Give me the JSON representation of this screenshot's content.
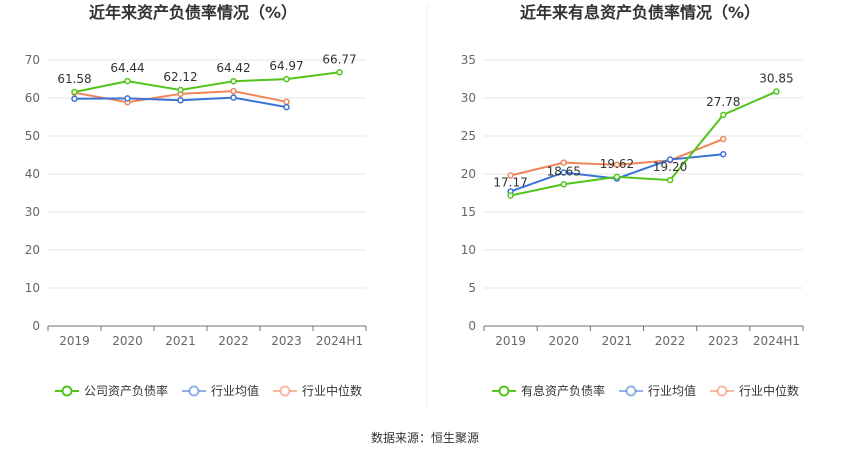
{
  "chart_data": [
    {
      "type": "line",
      "title": "近年来资产负债率情况（%）",
      "categories": [
        "2019",
        "2020",
        "2021",
        "2022",
        "2023",
        "2024H1"
      ],
      "ylim": [
        0,
        70
      ],
      "yticks": [
        0,
        10,
        20,
        30,
        40,
        50,
        60,
        70
      ],
      "grid": true,
      "legend_position": "bottom",
      "series": [
        {
          "name": "公司资产负债率",
          "color": "#52c41a",
          "values": [
            61.58,
            64.44,
            62.12,
            64.42,
            64.97,
            66.77
          ],
          "labels": [
            "61.58",
            "64.44",
            "62.12",
            "64.42",
            "64.97",
            "66.77"
          ]
        },
        {
          "name": "行业均值",
          "color": "#3a72d6",
          "values": [
            59.8,
            59.9,
            59.4,
            60.1,
            57.6,
            null
          ]
        },
        {
          "name": "行业中位数",
          "color": "#f0845a",
          "values": [
            61.4,
            58.9,
            61.1,
            61.8,
            59.0,
            null
          ]
        }
      ]
    },
    {
      "type": "line",
      "title": "近年来有息资产负债率情况（%）",
      "categories": [
        "2019",
        "2020",
        "2021",
        "2022",
        "2023",
        "2024H1"
      ],
      "ylim": [
        0,
        35
      ],
      "yticks": [
        0,
        5,
        10,
        15,
        20,
        25,
        30,
        35
      ],
      "grid": true,
      "legend_position": "bottom",
      "series": [
        {
          "name": "有息资产负债率",
          "color": "#52c41a",
          "values": [
            17.17,
            18.65,
            19.62,
            19.2,
            27.78,
            30.85
          ],
          "labels": [
            "17.17",
            "18.65",
            "19.62",
            "19.20",
            "27.78",
            "30.85"
          ]
        },
        {
          "name": "行业均值",
          "color": "#3a72d6",
          "values": [
            17.7,
            20.2,
            19.4,
            21.9,
            22.6,
            null
          ]
        },
        {
          "name": "行业中位数",
          "color": "#f0845a",
          "values": [
            19.8,
            21.5,
            21.2,
            21.8,
            24.6,
            null
          ]
        }
      ]
    }
  ],
  "footer": {
    "source": "数据来源：恒生聚源"
  }
}
